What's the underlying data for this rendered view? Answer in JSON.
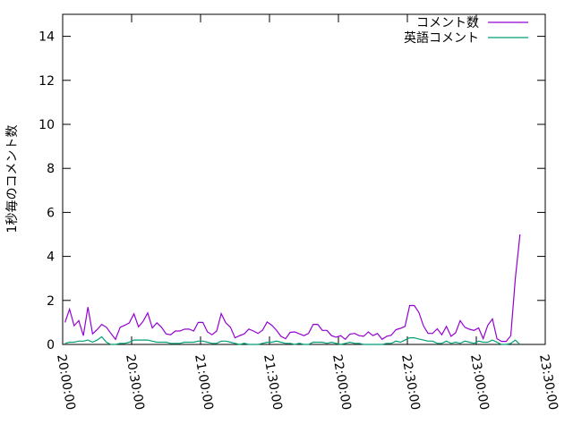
{
  "chart_data": {
    "type": "line",
    "title": "",
    "xlabel": "",
    "ylabel": "1秒毎のコメント数",
    "xlim": [
      "20:00:00",
      "23:30:00"
    ],
    "ylim": [
      0,
      15
    ],
    "x_ticks": [
      "20:00:00",
      "20:30:00",
      "21:00:00",
      "21:30:00",
      "22:00:00",
      "22:30:00",
      "23:00:00",
      "23:30:00"
    ],
    "y_ticks": [
      0,
      2,
      4,
      6,
      8,
      10,
      12,
      14
    ],
    "grid": false,
    "legend_position": "top-right",
    "x": [
      "20:01:00",
      "20:03:00",
      "20:05:00",
      "20:07:00",
      "20:09:00",
      "20:11:00",
      "20:13:00",
      "20:15:00",
      "20:17:00",
      "20:19:00",
      "20:21:00",
      "20:23:00",
      "20:25:00",
      "20:27:00",
      "20:29:00",
      "20:31:00",
      "20:33:00",
      "20:35:00",
      "20:37:00",
      "20:39:00",
      "20:41:00",
      "20:43:00",
      "20:45:00",
      "20:47:00",
      "20:49:00",
      "20:51:00",
      "20:53:00",
      "20:55:00",
      "20:57:00",
      "20:59:00",
      "21:01:00",
      "21:03:00",
      "21:05:00",
      "21:07:00",
      "21:09:00",
      "21:11:00",
      "21:13:00",
      "21:15:00",
      "21:17:00",
      "21:19:00",
      "21:21:00",
      "21:23:00",
      "21:25:00",
      "21:27:00",
      "21:29:00",
      "21:31:00",
      "21:33:00",
      "21:35:00",
      "21:37:00",
      "21:39:00",
      "21:41:00",
      "21:43:00",
      "21:45:00",
      "21:47:00",
      "21:49:00",
      "21:51:00",
      "21:53:00",
      "21:55:00",
      "21:57:00",
      "21:59:00",
      "22:01:00",
      "22:03:00",
      "22:05:00",
      "22:07:00",
      "22:09:00",
      "22:11:00",
      "22:13:00",
      "22:15:00",
      "22:17:00",
      "22:19:00",
      "22:21:00",
      "22:23:00",
      "22:25:00",
      "22:27:00",
      "22:29:00",
      "22:31:00",
      "22:33:00",
      "22:35:00",
      "22:37:00",
      "22:39:00",
      "22:41:00",
      "22:43:00",
      "22:45:00",
      "22:47:00",
      "22:49:00",
      "22:51:00",
      "22:53:00",
      "22:55:00",
      "22:57:00",
      "22:59:00",
      "23:01:00",
      "23:03:00",
      "23:05:00",
      "23:07:00",
      "23:09:00",
      "23:11:00",
      "23:13:00",
      "23:15:00",
      "23:17:00",
      "23:19:00"
    ],
    "series": [
      {
        "name": "コメント数",
        "color": "#9400d3",
        "values": [
          1.0,
          1.6,
          0.85,
          1.08,
          0.4,
          1.7,
          0.48,
          0.67,
          0.91,
          0.78,
          0.5,
          0.23,
          0.78,
          0.87,
          0.98,
          1.39,
          0.8,
          1.05,
          1.43,
          0.75,
          0.98,
          0.78,
          0.48,
          0.44,
          0.61,
          0.61,
          0.69,
          0.7,
          0.61,
          1.0,
          1.0,
          0.57,
          0.44,
          0.61,
          1.4,
          0.98,
          0.78,
          0.3,
          0.4,
          0.48,
          0.7,
          0.61,
          0.5,
          0.65,
          1.02,
          0.87,
          0.65,
          0.37,
          0.26,
          0.55,
          0.57,
          0.48,
          0.4,
          0.5,
          0.91,
          0.91,
          0.64,
          0.64,
          0.4,
          0.33,
          0.4,
          0.23,
          0.47,
          0.5,
          0.4,
          0.37,
          0.57,
          0.4,
          0.5,
          0.23,
          0.37,
          0.42,
          0.67,
          0.73,
          0.82,
          1.77,
          1.77,
          1.46,
          0.84,
          0.5,
          0.5,
          0.71,
          0.44,
          0.82,
          0.37,
          0.53,
          1.08,
          0.78,
          0.69,
          0.64,
          0.75,
          0.26,
          0.87,
          1.16,
          0.26,
          0.14,
          0.14,
          0.4,
          3.0,
          5.0
        ]
      },
      {
        "name": "英語コメント",
        "color": "#009e73",
        "values": [
          0.05,
          0.1,
          0.1,
          0.15,
          0.15,
          0.2,
          0.1,
          0.2,
          0.35,
          0.1,
          0,
          0,
          0.05,
          0.05,
          0.1,
          0.2,
          0.2,
          0.2,
          0.2,
          0.15,
          0.1,
          0.1,
          0.1,
          0.05,
          0.05,
          0.05,
          0.1,
          0.1,
          0.1,
          0.15,
          0.15,
          0.1,
          0.05,
          0.05,
          0.15,
          0.15,
          0.1,
          0.05,
          0,
          0.05,
          0,
          0,
          0,
          0.05,
          0.1,
          0.1,
          0.15,
          0.1,
          0.05,
          0.05,
          0,
          0.05,
          0,
          0,
          0.1,
          0.1,
          0.1,
          0.05,
          0.1,
          0.05,
          0,
          0.05,
          0.1,
          0.05,
          0.05,
          0,
          0,
          0,
          0,
          0,
          0.05,
          0.05,
          0.15,
          0.1,
          0.2,
          0.3,
          0.3,
          0.25,
          0.2,
          0.15,
          0.15,
          0.05,
          0.05,
          0.15,
          0.05,
          0.1,
          0.05,
          0.15,
          0.1,
          0.05,
          0.15,
          0.1,
          0.1,
          0.2,
          0.1,
          0,
          0,
          0.05,
          0.2,
          0
        ]
      }
    ]
  }
}
